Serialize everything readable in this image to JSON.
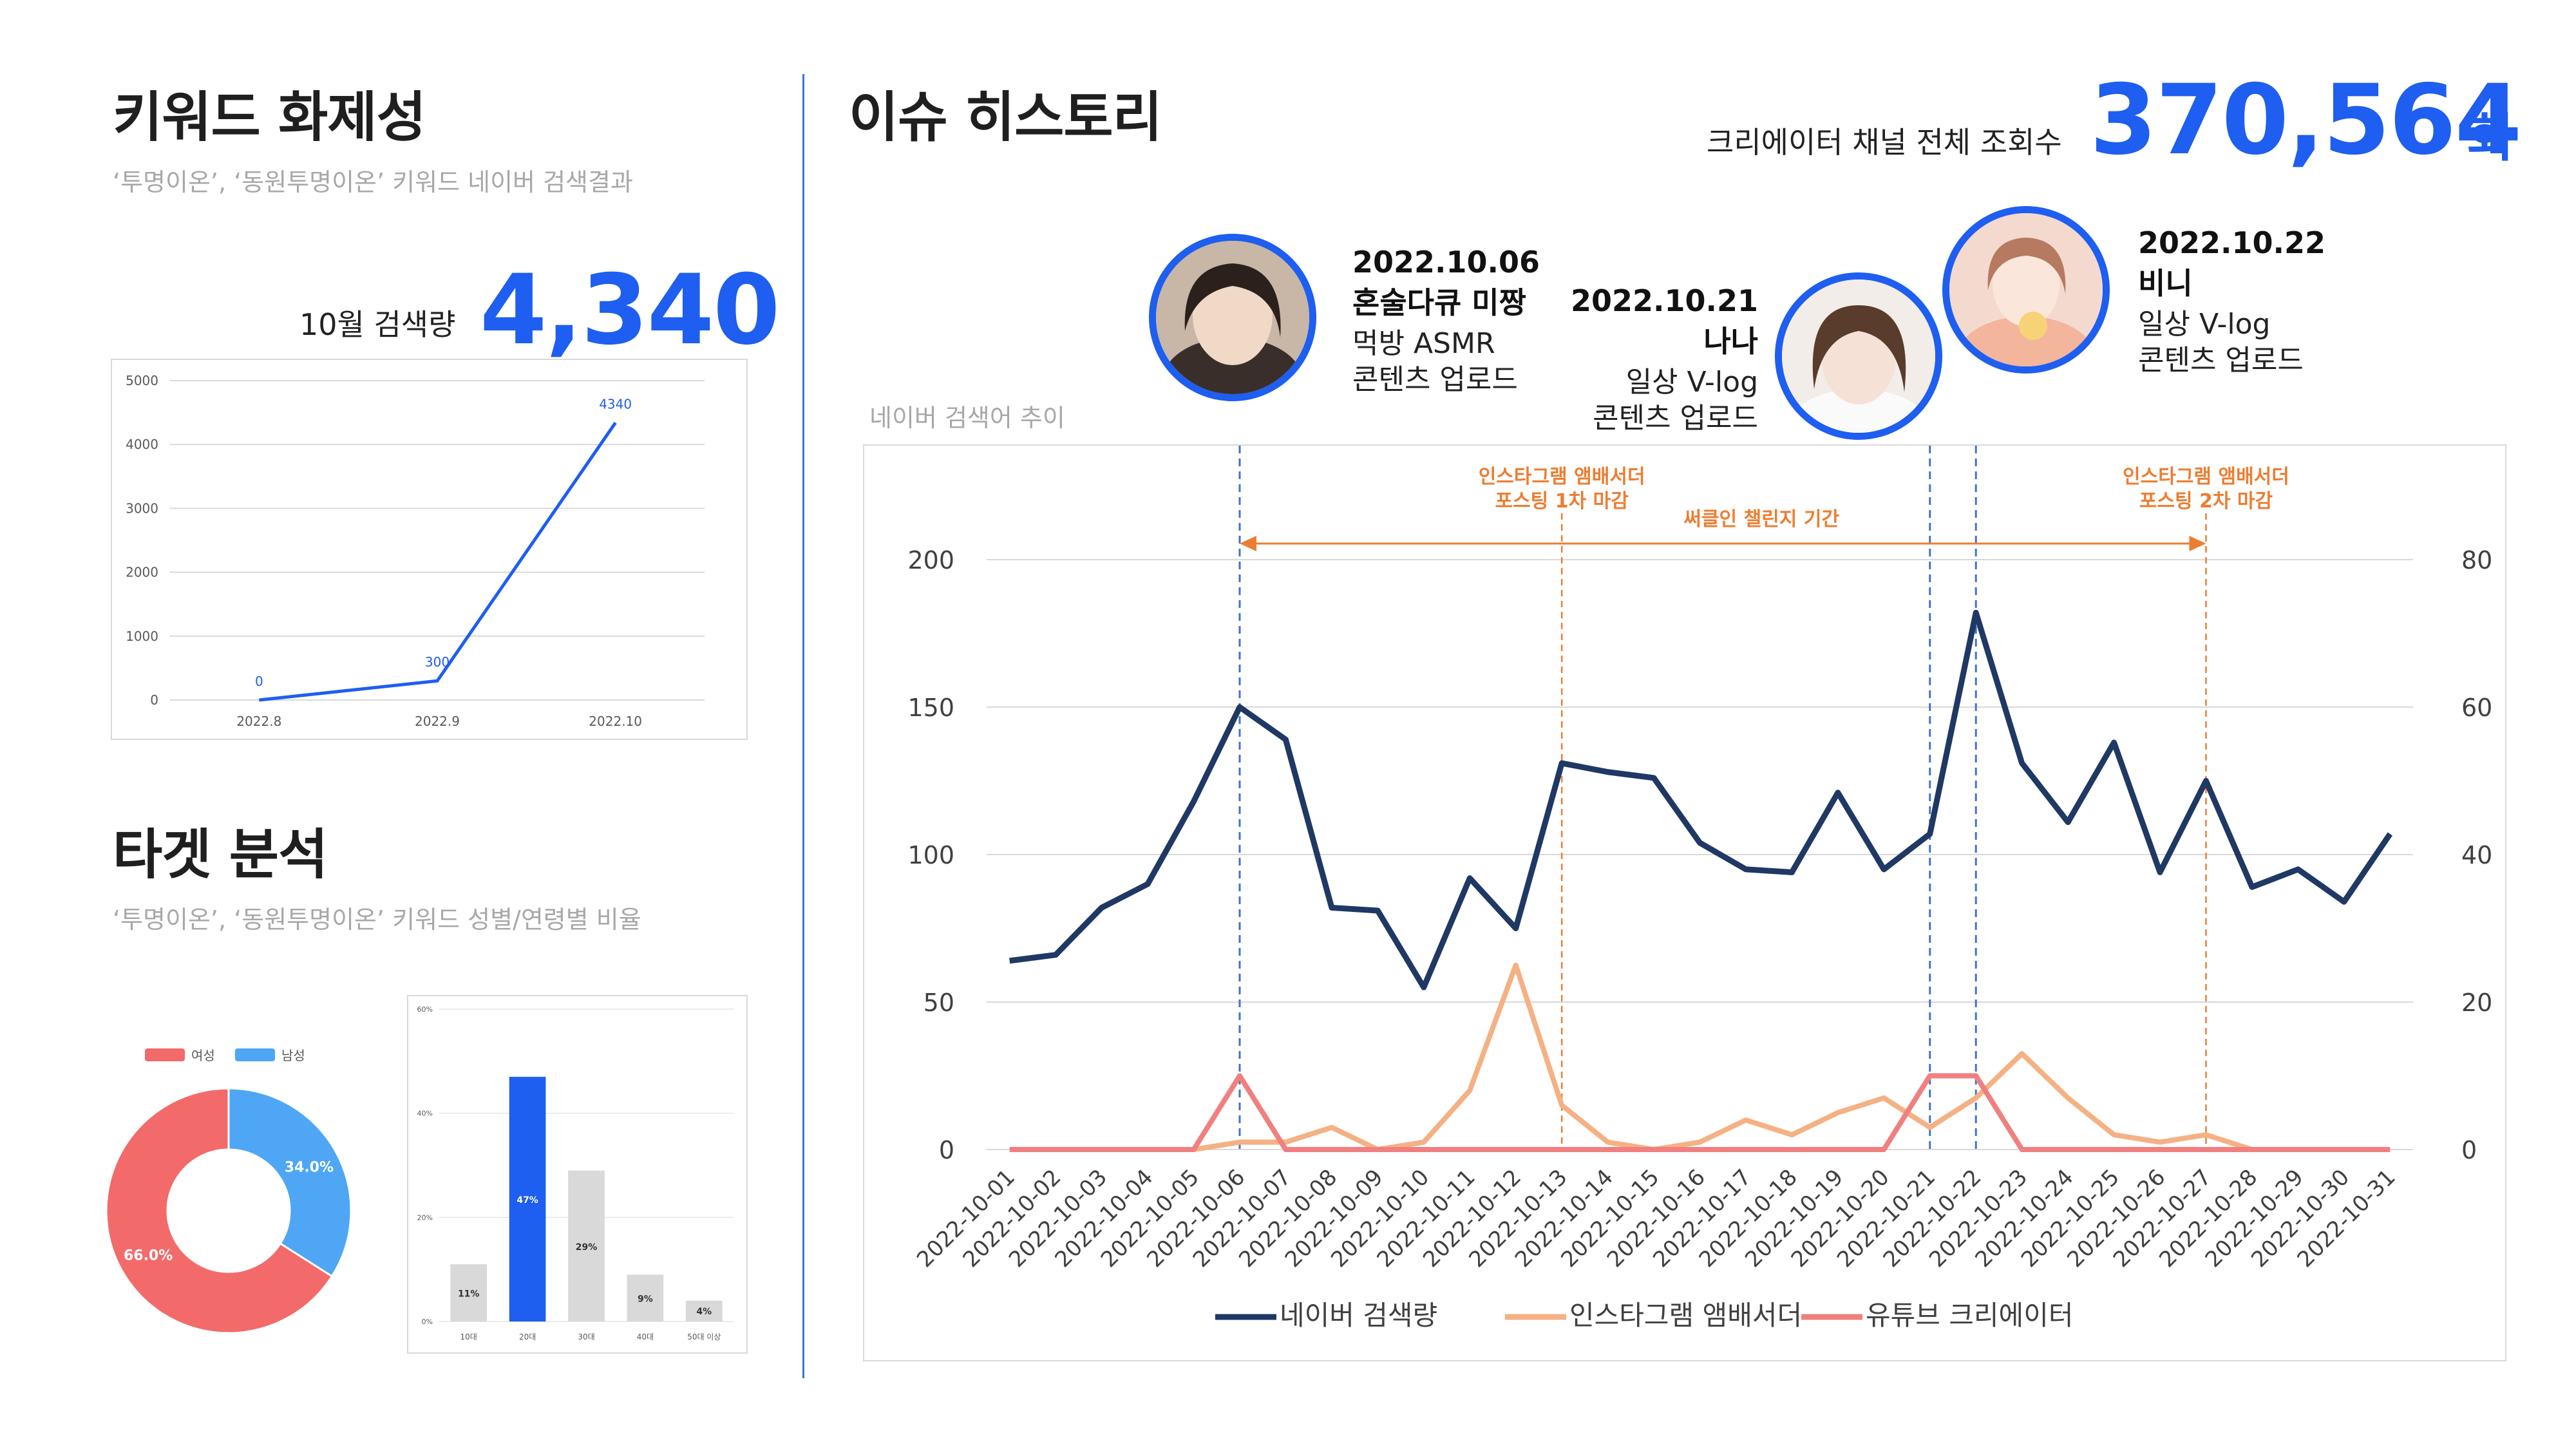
{
  "keyword": {
    "title": "키워드 화제성",
    "subtitle": "‘투명이온’, ‘동원투명이온’ 키워드 네이버 검색결과",
    "search_label": "10월 검색량",
    "search_value": "4,340"
  },
  "target": {
    "title": "타겟 분석",
    "subtitle": "‘투명이온’, ‘동원투명이온’ 키워드 성별/연령별 비율"
  },
  "issue": {
    "title": "이슈 히스토리",
    "views_label": "크리에이터 채널 전체 조회수",
    "views_value": "370,564",
    "views_unit": "회",
    "chart_caption": "네이버 검색어 추이"
  },
  "events": [
    {
      "date": "2022.10.06",
      "name": "혼술다큐 미짱",
      "desc1": "먹방 ASMR",
      "desc2": "콘텐츠 업로드"
    },
    {
      "date": "2022.10.21",
      "name": "나나",
      "desc1": "일상 V-log",
      "desc2": "콘텐츠 업로드"
    },
    {
      "date": "2022.10.22",
      "name": "비니",
      "desc1": "일상 V-log",
      "desc2": "콘텐츠 업로드"
    }
  ],
  "colors": {
    "accent": "#1e5ef0",
    "navy": "#1f3864",
    "orange_line": "#f4b183",
    "red_line": "#f08080",
    "annotation": "#ed7d31",
    "female": "#f36a6a",
    "male": "#4ea6f5",
    "bar_gray": "#d9d9d9"
  },
  "chart_data": [
    {
      "type": "line",
      "x": [
        "2022.8",
        "2022.9",
        "2022.10"
      ],
      "values": [
        0,
        300,
        4340
      ],
      "data_labels": [
        "0",
        "300",
        "4340"
      ],
      "ylim": [
        0,
        5000
      ],
      "yticks": [
        "0",
        "1000",
        "2000",
        "3000",
        "4000",
        "5000"
      ],
      "grid": true
    },
    {
      "type": "pie",
      "legend": [
        "여성",
        "남성"
      ],
      "values": [
        66.0,
        34.0
      ],
      "data_labels": [
        "66.0%",
        "34.0%"
      ],
      "legend_position": "top"
    },
    {
      "type": "bar",
      "categories": [
        "10대",
        "20대",
        "30대",
        "40대",
        "50대 이상"
      ],
      "values": [
        11,
        47,
        29,
        9,
        4
      ],
      "data_labels": [
        "11%",
        "47%",
        "29%",
        "9%",
        "4%"
      ],
      "ylim": [
        0,
        60
      ],
      "yticks": [
        "0%",
        "20%",
        "40%",
        "60%"
      ]
    },
    {
      "type": "line",
      "x": [
        "2022-10-01",
        "2022-10-02",
        "2022-10-03",
        "2022-10-04",
        "2022-10-05",
        "2022-10-06",
        "2022-10-07",
        "2022-10-08",
        "2022-10-09",
        "2022-10-10",
        "2022-10-11",
        "2022-10-12",
        "2022-10-13",
        "2022-10-14",
        "2022-10-15",
        "2022-10-16",
        "2022-10-17",
        "2022-10-18",
        "2022-10-19",
        "2022-10-20",
        "2022-10-21",
        "2022-10-22",
        "2022-10-23",
        "2022-10-24",
        "2022-10-25",
        "2022-10-26",
        "2022-10-27",
        "2022-10-28",
        "2022-10-29",
        "2022-10-30",
        "2022-10-31"
      ],
      "series": [
        {
          "name": "네이버 검색량",
          "axis": "left",
          "values": [
            64,
            66,
            82,
            90,
            118,
            150,
            139,
            82,
            81,
            55,
            92,
            75,
            131,
            128,
            126,
            104,
            95,
            94,
            121,
            95,
            107,
            182,
            131,
            111,
            138,
            94,
            125,
            89,
            95,
            84,
            107
          ]
        },
        {
          "name": "인스타그램 앰배서더",
          "axis": "right",
          "values": [
            0,
            0,
            0,
            0,
            0,
            1,
            1,
            3,
            0,
            1,
            8,
            25,
            6,
            1,
            0,
            1,
            4,
            2,
            5,
            7,
            3,
            7,
            13,
            7,
            2,
            1,
            2,
            0,
            0,
            0,
            0
          ]
        },
        {
          "name": "유튜브 크리에이터",
          "axis": "right",
          "values": [
            0,
            0,
            0,
            0,
            0,
            10,
            0,
            0,
            0,
            0,
            0,
            0,
            0,
            0,
            0,
            0,
            0,
            0,
            0,
            0,
            10,
            10,
            0,
            0,
            0,
            0,
            0,
            0,
            0,
            0,
            0
          ]
        }
      ],
      "ylim_left": [
        0,
        200
      ],
      "yticks_left": [
        "0",
        "50",
        "100",
        "150",
        "200"
      ],
      "ylim_right": [
        0,
        80
      ],
      "yticks_right": [
        "0",
        "20",
        "40",
        "60",
        "80"
      ],
      "annotations": [
        {
          "line1": "인스타그램 앰배서더",
          "line2": "포스팅 1차 마감",
          "x": "2022-10-13"
        },
        {
          "line1": "인스타그램 앰배서더",
          "line2": "포스팅 2차 마감",
          "x": "2022-10-27"
        },
        {
          "line1": "써클인 챌린지 기간",
          "from": "2022-10-06",
          "to": "2022-10-27"
        }
      ],
      "event_markers": [
        "2022-10-06",
        "2022-10-21",
        "2022-10-22"
      ],
      "legend_position": "bottom",
      "grid": true
    }
  ]
}
